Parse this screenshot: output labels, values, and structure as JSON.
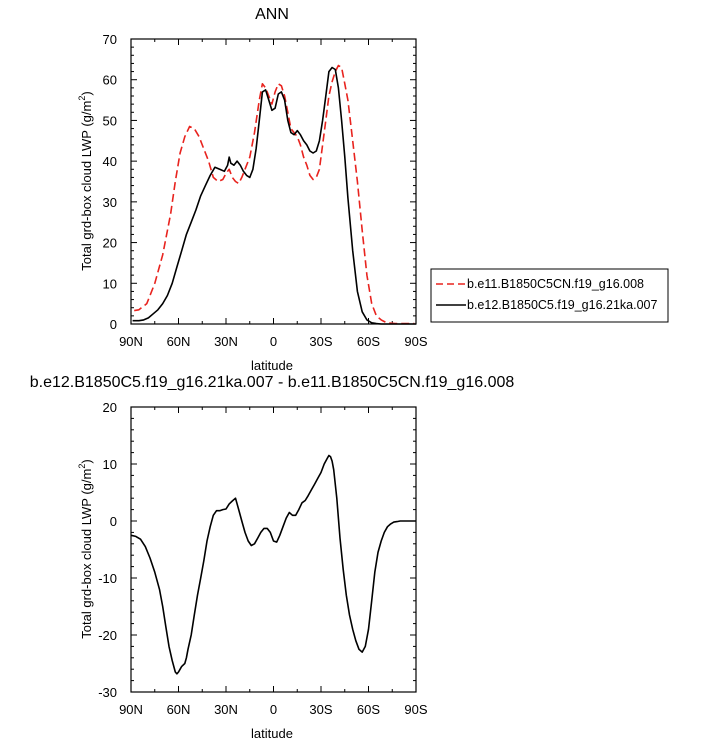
{
  "colors": {
    "axis": "#000000",
    "series_a": "#e8231e",
    "series_b": "#000000",
    "background": "#ffffff"
  },
  "chart_data": [
    {
      "type": "line",
      "title": "ANN",
      "xlabel": "latitude",
      "ylabel": "Total grd-box cloud LWP (g/m",
      "ylabel_sup": "2",
      "ylabel_close": ")",
      "xlim": [
        90,
        -90
      ],
      "ylim": [
        0,
        70
      ],
      "xticks": [
        90,
        60,
        30,
        0,
        -30,
        -60,
        -90
      ],
      "xtick_labels": [
        "90N",
        "60N",
        "30N",
        "0",
        "30S",
        "60S",
        "90S"
      ],
      "yticks": [
        0,
        10,
        20,
        30,
        40,
        50,
        60,
        70
      ],
      "ytick_labels": [
        "0",
        "10",
        "20",
        "30",
        "40",
        "50",
        "60",
        "70"
      ],
      "legend_position": "right",
      "series": [
        {
          "name": "b.e11.B1850C5CN.f19_g16.008",
          "style": "dashed",
          "color": "#e8231e",
          "x": [
            88,
            85,
            80,
            75,
            70,
            65,
            62,
            59,
            56,
            53,
            50,
            47,
            44,
            41,
            38,
            35,
            32,
            30,
            28,
            26,
            24,
            22,
            20,
            18,
            15,
            12,
            9,
            7,
            5,
            3,
            1,
            -1,
            -3,
            -5,
            -7,
            -9,
            -11,
            -13,
            -15,
            -17,
            -19,
            -21,
            -23,
            -25,
            -27,
            -29,
            -31,
            -33,
            -35,
            -37,
            -39,
            -41,
            -43,
            -45,
            -47,
            -50,
            -53,
            -56,
            -59,
            -62,
            -65,
            -68,
            -71,
            -74,
            -77,
            -80,
            -83,
            -86,
            -89
          ],
          "y": [
            3.3,
            3.5,
            5,
            10,
            17,
            27,
            35,
            42,
            46,
            48.5,
            48,
            46,
            43,
            40,
            36,
            35,
            35.5,
            37,
            38,
            36,
            35,
            34.5,
            36,
            38,
            41,
            47,
            55,
            59,
            58,
            56,
            54,
            57,
            59,
            58.5,
            56,
            52,
            48,
            47,
            46,
            44,
            41,
            39,
            36.5,
            35.5,
            36,
            38,
            44,
            50,
            56,
            59.5,
            62,
            63.5,
            63,
            59,
            55,
            45,
            35,
            23,
            12,
            5,
            2,
            1,
            0.4,
            0.2,
            0.1,
            0.1,
            0.1,
            0.1,
            0.1
          ]
        },
        {
          "name": "b.e12.B1850C5.f19_g16.21ka.007",
          "style": "solid",
          "color": "#000000",
          "x": [
            89,
            85,
            82,
            79,
            76,
            73,
            70,
            67,
            64,
            61,
            58,
            55,
            52,
            49,
            46,
            43,
            40,
            37,
            34,
            31,
            29,
            28,
            27,
            25,
            23,
            21,
            19,
            17,
            15,
            13,
            11,
            9,
            7,
            5,
            3,
            1,
            -1,
            -3,
            -5,
            -7,
            -9,
            -11,
            -13,
            -15,
            -17,
            -19,
            -21,
            -23,
            -25,
            -27,
            -29,
            -31,
            -33,
            -35,
            -37,
            -39,
            -41,
            -43,
            -45,
            -47,
            -50,
            -53,
            -56,
            -59,
            -62,
            -65,
            -68,
            -71,
            -74,
            -77,
            -80,
            -84,
            -87,
            -90
          ],
          "y": [
            0.8,
            0.8,
            1,
            1.5,
            2.5,
            3.5,
            5,
            7,
            10,
            14,
            18,
            22,
            25,
            28,
            31.5,
            34,
            36.5,
            38.5,
            38,
            37.5,
            39,
            41,
            39.5,
            39,
            40,
            39,
            37.5,
            36.5,
            36,
            38,
            43,
            50,
            57,
            57.5,
            55,
            52.5,
            53,
            56.5,
            57,
            55,
            50,
            47,
            46.5,
            47.5,
            46.5,
            45,
            44,
            42.5,
            42,
            42.5,
            45,
            50,
            56,
            62,
            63,
            62.5,
            58,
            50,
            41,
            31,
            18,
            8,
            3,
            1,
            0.3,
            0.1,
            0,
            0,
            0,
            0,
            0,
            0,
            0,
            0
          ]
        }
      ]
    },
    {
      "type": "line",
      "title": "b.e12.B1850C5.f19_g16.21ka.007 - b.e11.B1850C5CN.f19_g16.008",
      "xlabel": "latitude",
      "ylabel": "Total grd-box cloud LWP (g/m",
      "ylabel_sup": "2",
      "ylabel_close": ")",
      "xlim": [
        90,
        -90
      ],
      "ylim": [
        -30,
        20
      ],
      "xticks": [
        90,
        60,
        30,
        0,
        -30,
        -60,
        -90
      ],
      "xtick_labels": [
        "90N",
        "60N",
        "30N",
        "0",
        "30S",
        "60S",
        "90S"
      ],
      "yticks": [
        -30,
        -20,
        -10,
        0,
        10,
        20
      ],
      "ytick_labels": [
        "-30",
        "-20",
        "-10",
        "0",
        "10",
        "20"
      ],
      "series": [
        {
          "style": "solid",
          "color": "#000000",
          "x": [
            90,
            87,
            84,
            81,
            78,
            75,
            72,
            70,
            68,
            66,
            64,
            62,
            61,
            60,
            59,
            58,
            56,
            55,
            54,
            52,
            50,
            48,
            46,
            44,
            42,
            40,
            38,
            36,
            34,
            32,
            30,
            28,
            26,
            24,
            22,
            20,
            18,
            16,
            14,
            12,
            10,
            8,
            6,
            4,
            2,
            0,
            -2,
            -4,
            -6,
            -8,
            -10,
            -12,
            -14,
            -16,
            -18,
            -20,
            -22,
            -24,
            -26,
            -28,
            -30,
            -32,
            -34,
            -35,
            -36,
            -37,
            -38,
            -40,
            -42,
            -44,
            -46,
            -48,
            -50,
            -52,
            -54,
            -56,
            -58,
            -60,
            -62,
            -64,
            -66,
            -68,
            -70,
            -72,
            -74,
            -76,
            -78,
            -80,
            -84,
            -88,
            -90
          ],
          "y": [
            -2.5,
            -2.7,
            -3.2,
            -4.5,
            -6.5,
            -9,
            -12,
            -15,
            -18.5,
            -22,
            -24.5,
            -26.5,
            -26.8,
            -26.5,
            -26,
            -25.5,
            -25,
            -24,
            -22.5,
            -20,
            -16.5,
            -13,
            -10,
            -7,
            -3.5,
            -1,
            1,
            1.8,
            1.8,
            2,
            2.1,
            3,
            3.5,
            4,
            2,
            0,
            -2,
            -3.5,
            -4.3,
            -4,
            -3,
            -2,
            -1.3,
            -1.3,
            -2,
            -3.5,
            -3.7,
            -2.5,
            -1,
            0.5,
            1.5,
            1,
            1,
            2,
            3.2,
            3.6,
            4.5,
            5.5,
            6.5,
            7.5,
            8.5,
            10,
            11,
            11.5,
            11.3,
            10.5,
            9,
            4,
            -3,
            -8.5,
            -13,
            -16.5,
            -19,
            -21,
            -22.5,
            -23,
            -22,
            -19,
            -14,
            -9,
            -5.5,
            -3.5,
            -2,
            -1,
            -0.5,
            -0.2,
            -0.1,
            0,
            0,
            0,
            0
          ]
        }
      ]
    }
  ]
}
